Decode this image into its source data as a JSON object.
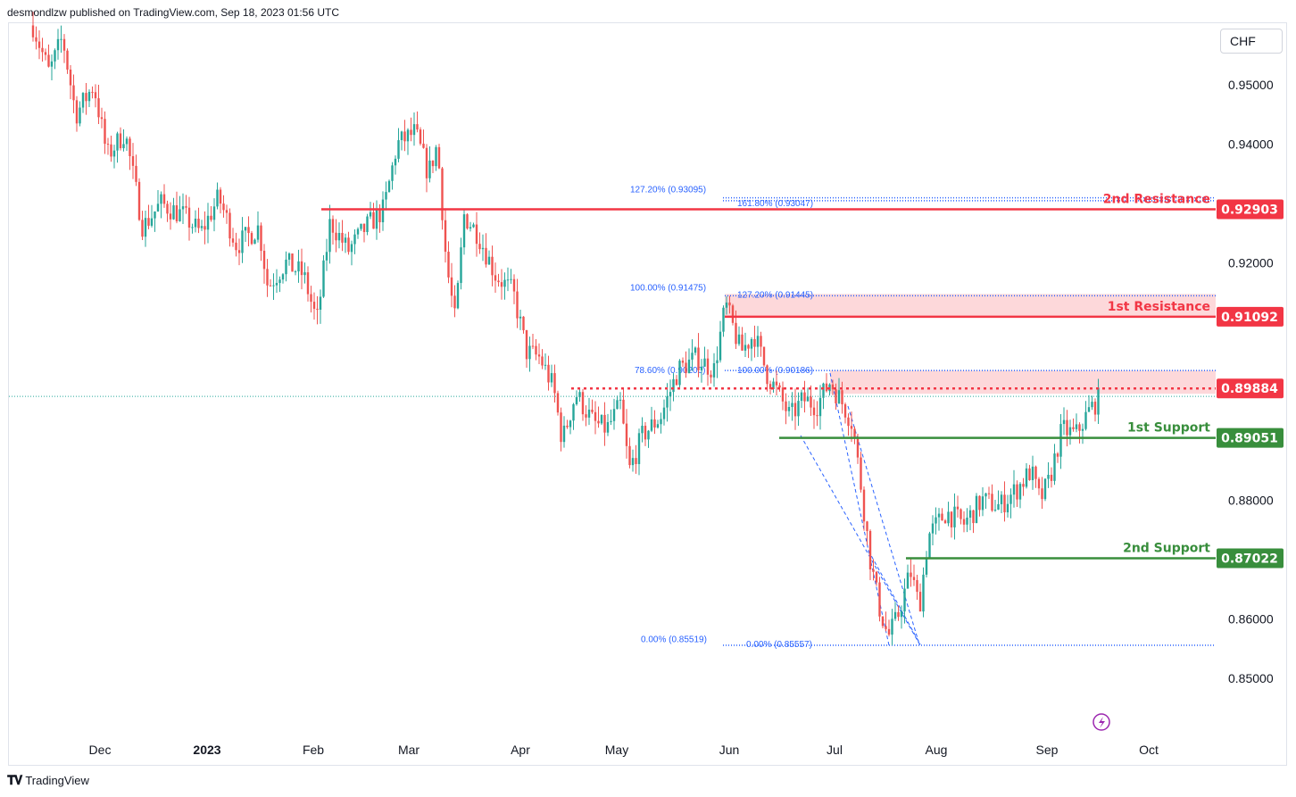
{
  "header": {
    "text": "desmondlzw published on TradingView.com, Sep 18, 2023 01:56 UTC"
  },
  "currency": "CHF",
  "footer": {
    "brand": "TradingView"
  },
  "colors": {
    "up": "#26a69a",
    "down": "#ef5350",
    "resistance": "#f23645",
    "support": "#388e3c",
    "fib": "#2962ff",
    "zone": "#fccbcd"
  },
  "chart_data": {
    "type": "candlestick",
    "instrument_currency": "CHF",
    "ylim": [
      0.8425,
      0.9775
    ],
    "yticks": [
      "0.95000",
      "0.94000",
      "0.92000",
      "0.88000",
      "0.86000",
      "0.85000"
    ],
    "xticks": [
      "Dec",
      "2023",
      "Feb",
      "Mar",
      "Apr",
      "May",
      "Jun",
      "Jul",
      "Aug",
      "Sep",
      "Oct"
    ],
    "levels": [
      {
        "label": "2nd Resistance",
        "value": "0.92903",
        "kind": "resistance"
      },
      {
        "label": "1st Resistance",
        "value": "0.91092",
        "kind": "resistance"
      },
      {
        "label": "",
        "value": "0.89884",
        "kind": "resistance-dotted"
      },
      {
        "label": "1st Support",
        "value": "0.89051",
        "kind": "support"
      },
      {
        "label": "2nd Support",
        "value": "0.87022",
        "kind": "support"
      }
    ],
    "fib_labels": [
      {
        "text": "127.20% (0.93095)",
        "value": 0.93095
      },
      {
        "text": "161.80% (0.93047)",
        "value": 0.93047
      },
      {
        "text": "100.00% (0.91475)",
        "value": 0.91475
      },
      {
        "text": "127.20% (0.91445)",
        "value": 0.91445
      },
      {
        "text": "78.60% (0.90200)",
        "value": 0.902
      },
      {
        "text": "100.00% (0.90186)",
        "value": 0.90186
      },
      {
        "text": "0.00% (0.85519)",
        "value": 0.85519
      },
      {
        "text": "0.00% (0.85557)",
        "value": 0.85557
      }
    ],
    "last_price": 0.8975
  }
}
